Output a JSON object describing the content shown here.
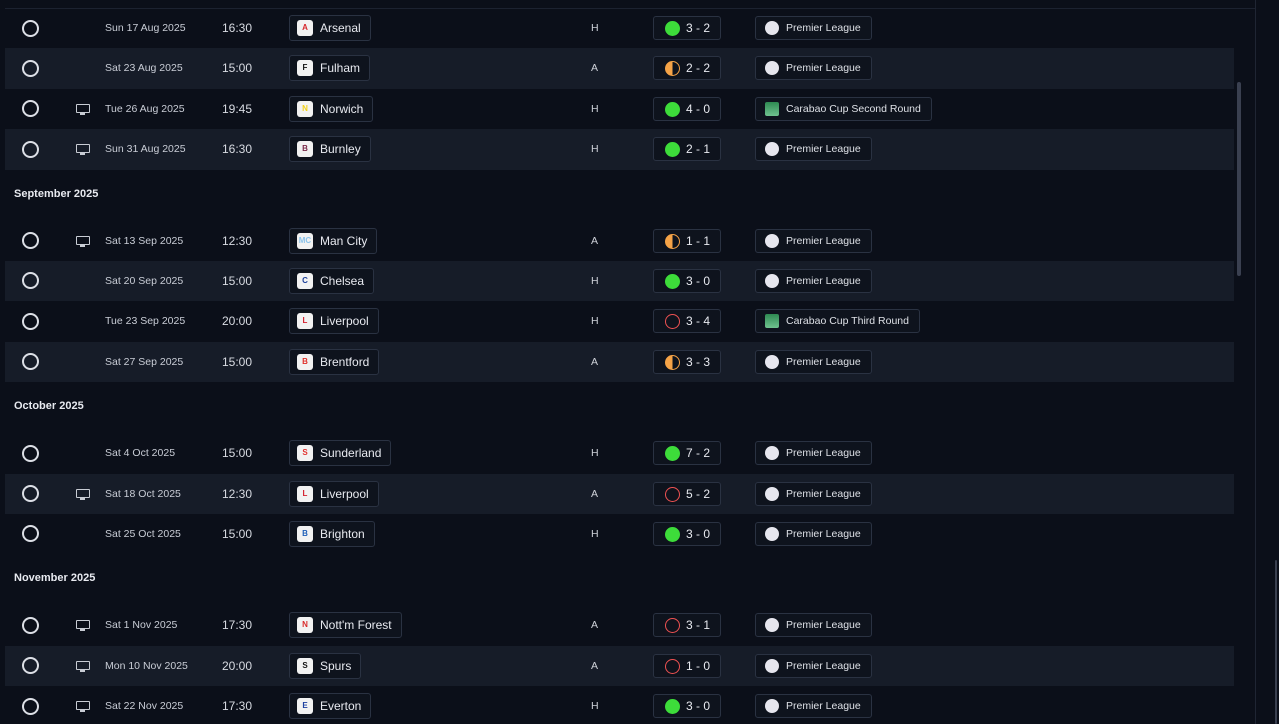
{
  "colors": {
    "win": "#3ddc3a",
    "draw": "#f5a347",
    "loss": "#ef5252",
    "background": "#0b0f19",
    "row_alt": "#161c28"
  },
  "icons": {
    "selector": "circle-outline-icon",
    "broadcast": "tv-icon",
    "premier_league": "premier-league-lion-icon",
    "carabao_cup": "carabao-cup-icon"
  },
  "sections": [
    {
      "month": "",
      "fixtures": [
        {
          "date": "Sun 17 Aug 2025",
          "time": "16:30",
          "opponent": "Arsenal",
          "crest": "A",
          "crest_color": "#d6262c",
          "venue": "H",
          "score": "3 - 2",
          "outcome": "W",
          "competition": "Premier League",
          "comp_type": "league",
          "tv": false
        },
        {
          "date": "Sat 23 Aug 2025",
          "time": "15:00",
          "opponent": "Fulham",
          "crest": "F",
          "crest_color": "#ffffff",
          "venue": "A",
          "score": "2 - 2",
          "outcome": "D",
          "competition": "Premier League",
          "comp_type": "league",
          "tv": false
        },
        {
          "date": "Tue 26 Aug 2025",
          "time": "19:45",
          "opponent": "Norwich",
          "crest": "N",
          "crest_color": "#f2d21a",
          "venue": "H",
          "score": "4 - 0",
          "outcome": "W",
          "competition": "Carabao Cup Second Round",
          "comp_type": "cup",
          "tv": true
        },
        {
          "date": "Sun 31 Aug 2025",
          "time": "16:30",
          "opponent": "Burnley",
          "crest": "B",
          "crest_color": "#7a2a4a",
          "venue": "H",
          "score": "2 - 1",
          "outcome": "W",
          "competition": "Premier League",
          "comp_type": "league",
          "tv": true
        }
      ]
    },
    {
      "month": "September 2025",
      "fixtures": [
        {
          "date": "Sat 13 Sep 2025",
          "time": "12:30",
          "opponent": "Man City",
          "crest": "MC",
          "crest_color": "#8cc3ea",
          "venue": "A",
          "score": "1 - 1",
          "outcome": "D",
          "competition": "Premier League",
          "comp_type": "league",
          "tv": true
        },
        {
          "date": "Sat 20 Sep 2025",
          "time": "15:00",
          "opponent": "Chelsea",
          "crest": "C",
          "crest_color": "#1c3f9a",
          "venue": "H",
          "score": "3 - 0",
          "outcome": "W",
          "competition": "Premier League",
          "comp_type": "league",
          "tv": false
        },
        {
          "date": "Tue 23 Sep 2025",
          "time": "20:00",
          "opponent": "Liverpool",
          "crest": "L",
          "crest_color": "#d4202e",
          "venue": "H",
          "score": "3 - 4",
          "outcome": "L",
          "competition": "Carabao Cup Third Round",
          "comp_type": "cup",
          "tv": false
        },
        {
          "date": "Sat 27 Sep 2025",
          "time": "15:00",
          "opponent": "Brentford",
          "crest": "B",
          "crest_color": "#e0302a",
          "venue": "A",
          "score": "3 - 3",
          "outcome": "D",
          "competition": "Premier League",
          "comp_type": "league",
          "tv": false
        }
      ]
    },
    {
      "month": "October 2025",
      "fixtures": [
        {
          "date": "Sat 4 Oct 2025",
          "time": "15:00",
          "opponent": "Sunderland",
          "crest": "S",
          "crest_color": "#e2302e",
          "venue": "H",
          "score": "7 - 2",
          "outcome": "W",
          "competition": "Premier League",
          "comp_type": "league",
          "tv": false
        },
        {
          "date": "Sat 18 Oct 2025",
          "time": "12:30",
          "opponent": "Liverpool",
          "crest": "L",
          "crest_color": "#d4202e",
          "venue": "A",
          "score": "5 - 2",
          "outcome": "L",
          "competition": "Premier League",
          "comp_type": "league",
          "tv": true
        },
        {
          "date": "Sat 25 Oct 2025",
          "time": "15:00",
          "opponent": "Brighton",
          "crest": "B",
          "crest_color": "#1f5fb8",
          "venue": "H",
          "score": "3 - 0",
          "outcome": "W",
          "competition": "Premier League",
          "comp_type": "league",
          "tv": false
        }
      ]
    },
    {
      "month": "November 2025",
      "fixtures": [
        {
          "date": "Sat 1 Nov 2025",
          "time": "17:30",
          "opponent": "Nott'm Forest",
          "crest": "N",
          "crest_color": "#d92a2a",
          "venue": "A",
          "score": "3 - 1",
          "outcome": "L",
          "competition": "Premier League",
          "comp_type": "league",
          "tv": true
        },
        {
          "date": "Mon 10 Nov 2025",
          "time": "20:00",
          "opponent": "Spurs",
          "crest": "S",
          "crest_color": "#ffffff",
          "venue": "A",
          "score": "1 - 0",
          "outcome": "L",
          "competition": "Premier League",
          "comp_type": "league",
          "tv": true
        },
        {
          "date": "Sat 22 Nov 2025",
          "time": "17:30",
          "opponent": "Everton",
          "crest": "E",
          "crest_color": "#1b3fa0",
          "venue": "H",
          "score": "3 - 0",
          "outcome": "W",
          "competition": "Premier League",
          "comp_type": "league",
          "tv": true
        }
      ]
    }
  ]
}
